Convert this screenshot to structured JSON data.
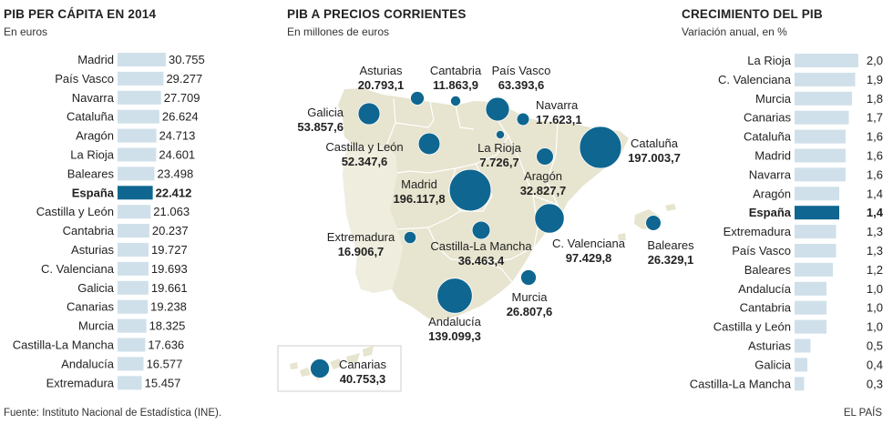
{
  "footer": {
    "source": "Fuente: Instituto Nacional de Estadística (INE).",
    "brand": "EL PAÍS"
  },
  "colors": {
    "bar": "#cfe0ea",
    "bar_highlight": "#0f6690",
    "bubble": "#0f6690",
    "land": "#e7e4cf",
    "border": "#ffffff",
    "text": "#222222"
  },
  "chart_data": [
    {
      "type": "bar",
      "orientation": "horizontal",
      "title": "PIB PER CÁPITA EN 2014",
      "subtitle": "En euros",
      "highlight": "España",
      "categories": [
        "Madrid",
        "País Vasco",
        "Navarra",
        "Cataluña",
        "Aragón",
        "La Rioja",
        "Baleares",
        "España",
        "Castilla y León",
        "Cantabria",
        "Asturias",
        "C. Valenciana",
        "Galicia",
        "Canarias",
        "Murcia",
        "Castilla-La Mancha",
        "Andalucía",
        "Extremadura"
      ],
      "values": [
        30755,
        29277,
        27709,
        26624,
        24713,
        24601,
        23498,
        22412,
        21063,
        20237,
        19727,
        19693,
        19661,
        19238,
        18325,
        17636,
        16577,
        15457
      ],
      "labels": [
        "30.755",
        "29.277",
        "27.709",
        "26.624",
        "24.713",
        "24.601",
        "23.498",
        "22.412",
        "21.063",
        "20.237",
        "19.727",
        "19.693",
        "19.661",
        "19.238",
        "18.325",
        "17.636",
        "16.577",
        "15.457"
      ]
    },
    {
      "type": "scatter",
      "title": "PIB A PRECIOS CORRIENTES",
      "subtitle": "En millones de euros",
      "bubbles": [
        {
          "name": "Asturias",
          "value": 20793.1,
          "label": "20.793,1"
        },
        {
          "name": "Cantabria",
          "value": 11863.9,
          "label": "11.863,9"
        },
        {
          "name": "País Vasco",
          "value": 63393.6,
          "label": "63.393,6"
        },
        {
          "name": "Galicia",
          "value": 53857.6,
          "label": "53.857,6"
        },
        {
          "name": "Navarra",
          "value": 17623.1,
          "label": "17.623,1"
        },
        {
          "name": "Castilla y León",
          "value": 52347.6,
          "label": "52.347,6"
        },
        {
          "name": "La Rioja",
          "value": 7726.7,
          "label": "7.726,7"
        },
        {
          "name": "Cataluña",
          "value": 197003.7,
          "label": "197.003,7"
        },
        {
          "name": "Aragón",
          "value": 32827.7,
          "label": "32.827,7"
        },
        {
          "name": "Madrid",
          "value": 196117.8,
          "label": "196.117,8"
        },
        {
          "name": "Extremadura",
          "value": 16906.7,
          "label": "16.906,7"
        },
        {
          "name": "Castilla-La Mancha",
          "value": 36463.4,
          "label": "36.463,4"
        },
        {
          "name": "C. Valenciana",
          "value": 97429.8,
          "label": "97.429,8"
        },
        {
          "name": "Baleares",
          "value": 26329.1,
          "label": "26.329,1"
        },
        {
          "name": "Murcia",
          "value": 26807.6,
          "label": "26.807,6"
        },
        {
          "name": "Andalucía",
          "value": 139099.3,
          "label": "139.099,3"
        },
        {
          "name": "Canarias",
          "value": 40753.3,
          "label": "40.753,3"
        }
      ]
    },
    {
      "type": "bar",
      "orientation": "horizontal",
      "title": "CRECIMIENTO DEL PIB",
      "subtitle": "Variación anual, en %",
      "highlight": "España",
      "categories": [
        "La Rioja",
        "C. Valenciana",
        "Murcia",
        "Canarias",
        "Cataluña",
        "Madrid",
        "Navarra",
        "Aragón",
        "España",
        "Extremadura",
        "País Vasco",
        "Baleares",
        "Andalucía",
        "Cantabria",
        "Castilla y León",
        "Asturias",
        "Galicia",
        "Castilla-La Mancha"
      ],
      "values": [
        2.0,
        1.9,
        1.8,
        1.7,
        1.6,
        1.6,
        1.6,
        1.4,
        1.4,
        1.3,
        1.3,
        1.2,
        1.0,
        1.0,
        1.0,
        0.5,
        0.4,
        0.3
      ],
      "labels": [
        "2,0",
        "1,9",
        "1,8",
        "1,7",
        "1,6",
        "1,6",
        "1,6",
        "1,4",
        "1,4",
        "1,3",
        "1,3",
        "1,2",
        "1,0",
        "1,0",
        "1,0",
        "0,5",
        "0,4",
        "0,3"
      ]
    }
  ]
}
